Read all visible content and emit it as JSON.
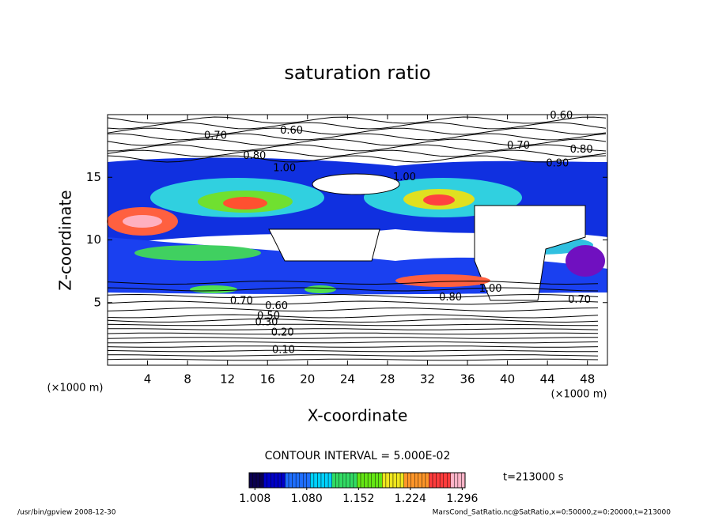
{
  "chart_data": {
    "type": "contour",
    "title": "saturation ratio",
    "x_label": "X-coordinate",
    "y_label": "Z-coordinate",
    "x_unit": "(×1000 m)",
    "y_unit": "(×1000 m)",
    "xlim": [
      0,
      50
    ],
    "xticks": [
      4,
      8,
      12,
      16,
      20,
      24,
      28,
      32,
      36,
      40,
      44,
      48
    ],
    "ylim": [
      0,
      20
    ],
    "yticks": [
      5,
      10,
      15
    ],
    "contour_interval": "CONTOUR INTERVAL = 5.000E-02",
    "time_label": "t=213000 s",
    "footer_left": "/usr/bin/gpview  2008-12-30",
    "footer_right": "MarsCond_SatRatio.nc@SatRatio,x=0:50000,z=0:20000,t=213000",
    "clim": [
      1.0,
      1.3
    ],
    "cticks": [
      1.008,
      {
        "value": 1.08,
        "label": "1.080"
      },
      1.152,
      1.224,
      1.296
    ],
    "colormap": [
      "#0a0050",
      "#0000c8",
      "#1e6eff",
      "#00d2ff",
      "#32dc64",
      "#64e614",
      "#f0e61e",
      "#ff9628",
      "#ff3c3c",
      "#ffb4c8"
    ],
    "contour_labels": [
      {
        "value": 0.7,
        "label": "0.70",
        "x": 10.8,
        "y": 18.3
      },
      {
        "value": 0.6,
        "label": "0.60",
        "x": 18.4,
        "y": 18.7
      },
      {
        "value": 0.8,
        "label": "0.80",
        "x": 14.7,
        "y": 16.7
      },
      {
        "value": 0.6,
        "label": "0.60",
        "x": 45.4,
        "y": 19.9
      },
      {
        "value": 0.7,
        "label": "0.70",
        "x": 41.1,
        "y": 17.5
      },
      {
        "value": 0.8,
        "label": "0.80",
        "x": 47.4,
        "y": 17.2
      },
      {
        "value": 0.9,
        "label": "0.90",
        "x": 45.0,
        "y": 16.1
      },
      {
        "value": 1.0,
        "label": "1.00",
        "x": 17.7,
        "y": 15.7
      },
      {
        "value": 1.0,
        "label": "1.00",
        "x": 29.7,
        "y": 15.0
      },
      {
        "value": 1.0,
        "label": "1.00",
        "x": 38.3,
        "y": 6.1
      },
      {
        "value": 0.7,
        "label": "0.70",
        "x": 13.4,
        "y": 5.1
      },
      {
        "value": 0.8,
        "label": "0.80",
        "x": 34.3,
        "y": 5.4
      },
      {
        "value": 0.7,
        "label": "0.70",
        "x": 47.2,
        "y": 5.2
      },
      {
        "value": 0.6,
        "label": "0.60",
        "x": 16.9,
        "y": 4.7
      },
      {
        "value": 0.5,
        "label": "0.50",
        "x": 16.1,
        "y": 3.9
      },
      {
        "value": 0.3,
        "label": "0.30",
        "x": 15.9,
        "y": 3.4
      },
      {
        "value": 0.2,
        "label": "0.20",
        "x": 17.5,
        "y": 2.6
      },
      {
        "value": 0.1,
        "label": "0.10",
        "x": 17.6,
        "y": 1.2
      }
    ]
  }
}
